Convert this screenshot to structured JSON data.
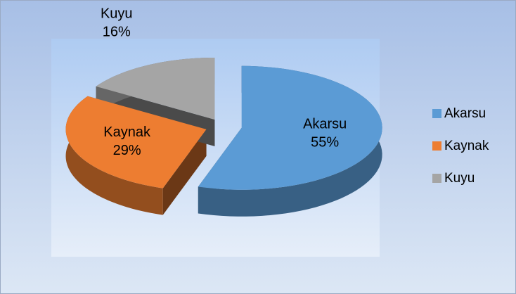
{
  "chart_data": {
    "type": "pie",
    "categories": [
      "Akarsu",
      "Kaynak",
      "Kuyu"
    ],
    "values": [
      55,
      29,
      16
    ],
    "value_labels": [
      "55%",
      "29%",
      "16%"
    ],
    "colors": [
      "#5b9bd5",
      "#ed7d31",
      "#a5a5a5"
    ],
    "legend": "right"
  }
}
